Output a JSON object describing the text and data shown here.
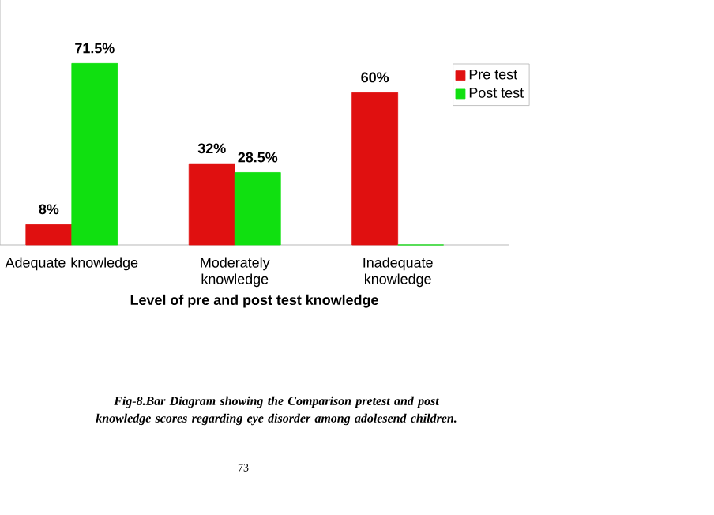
{
  "chart_data": {
    "type": "bar",
    "categories": [
      "Adequate knowledge",
      "Moderately knowledge",
      "Inadequate knowledge"
    ],
    "xlabel": "Level of pre and post test knowledge",
    "legend": "top right",
    "series": [
      {
        "name": "Pre test",
        "color": "#e01010",
        "values": [
          8,
          32,
          60
        ],
        "value_labels": [
          "8%",
          "32%",
          "60%"
        ]
      },
      {
        "name": "Post test",
        "color": "#10e010",
        "values": [
          71.5,
          28.5,
          0
        ],
        "value_labels": [
          "71.5%",
          "28.5%",
          null
        ]
      }
    ],
    "annotations": [
      "Fig-8.Bar Diagram showing the Comparison pretest and post knowledge scores regarding eye disorder among adolesend children.",
      "73"
    ]
  }
}
